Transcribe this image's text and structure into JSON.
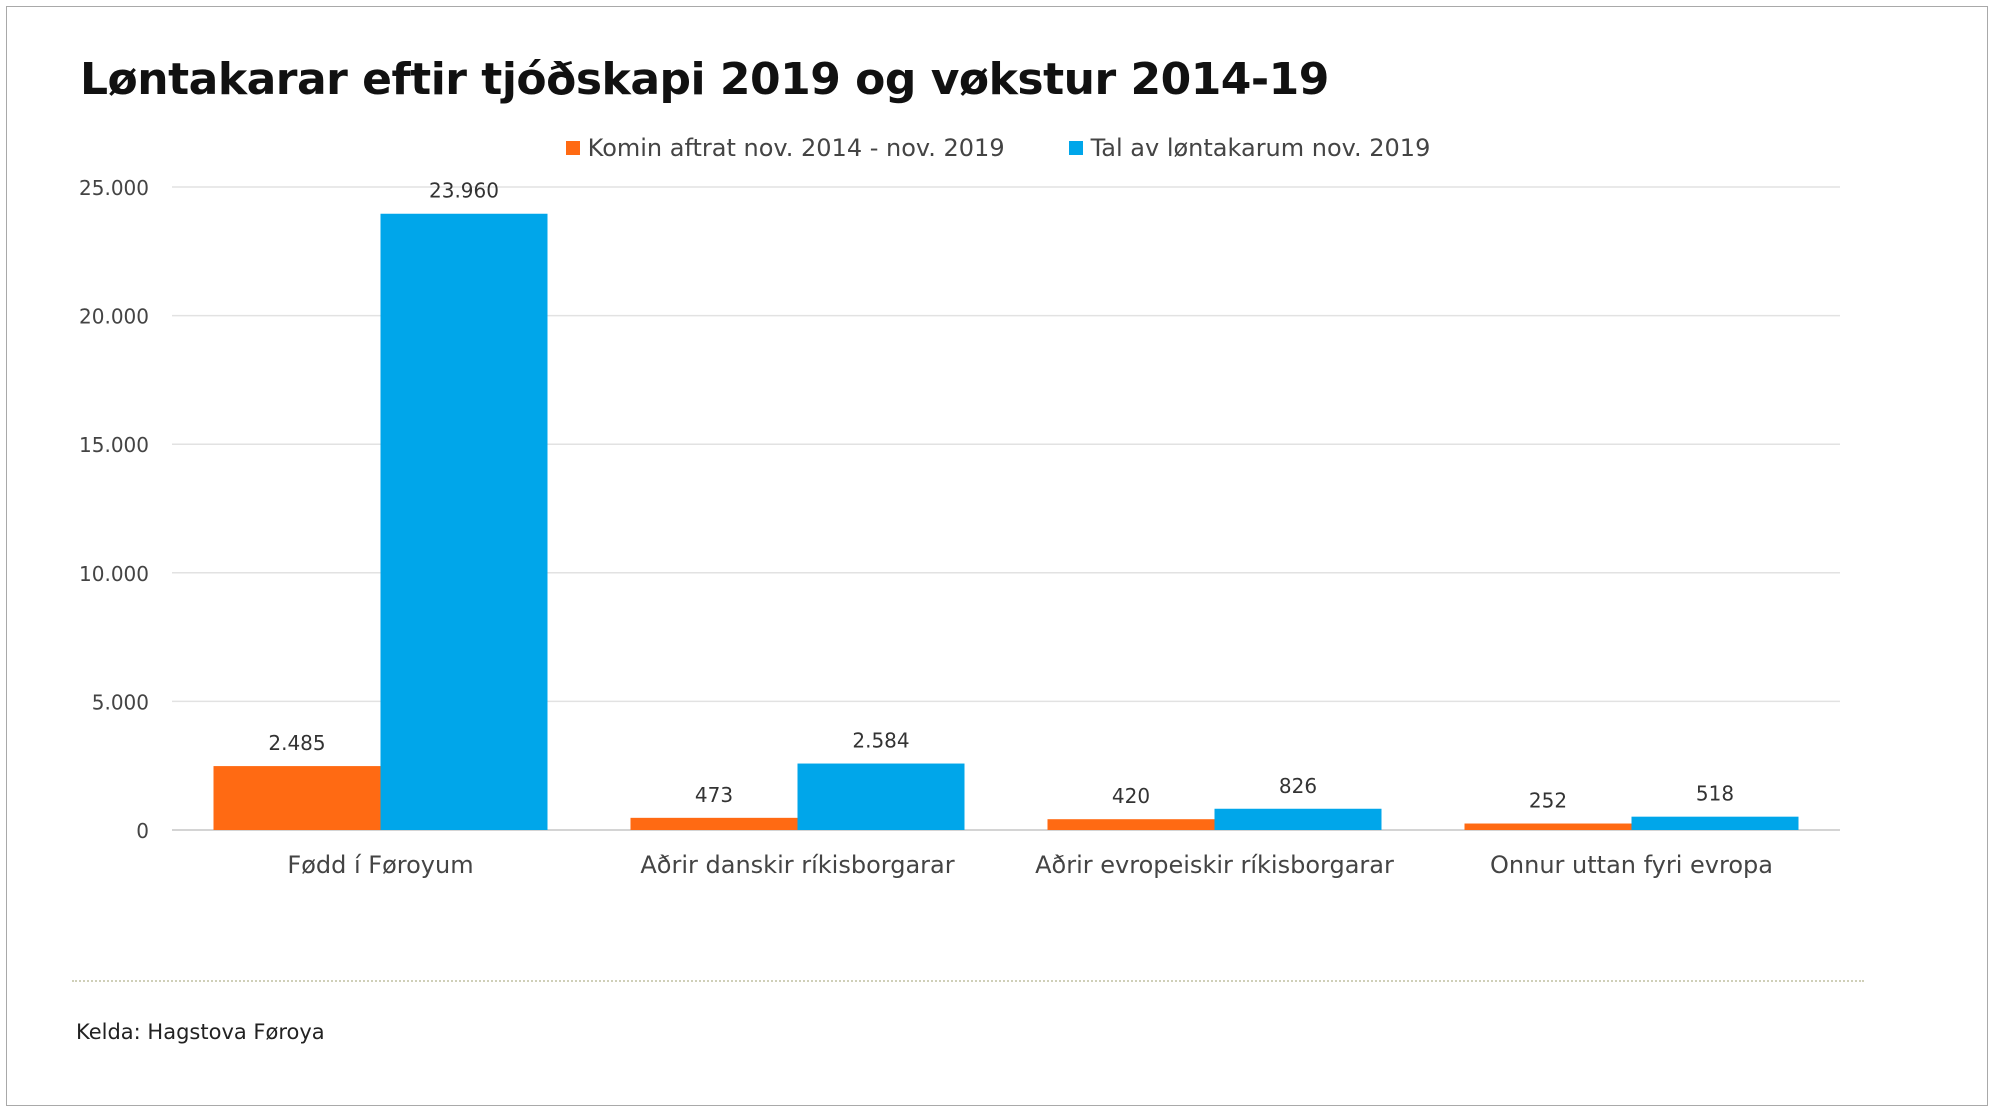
{
  "chart_data": {
    "type": "bar",
    "title": "Løntakarar eftir tjóðskapi 2019 og vøkstur 2014-19",
    "categories": [
      "Fødd í Føroyum",
      "Aðrir danskir ríkisborgarar",
      "Aðrir evropeiskir ríkisborgarar",
      "Onnur uttan fyri evropa"
    ],
    "series": [
      {
        "name": "Komin aftrat nov. 2014 - nov. 2019",
        "color": "#ff6a13",
        "values": [
          2485,
          473,
          420,
          252
        ],
        "labels": [
          "2.485",
          "473",
          "420",
          "252"
        ]
      },
      {
        "name": "Tal av løntakarum nov. 2019",
        "color": "#00a6ea",
        "values": [
          23960,
          2584,
          826,
          518
        ],
        "labels": [
          "23.960",
          "2.584",
          "826",
          "518"
        ]
      }
    ],
    "yticks": [
      0,
      5000,
      10000,
      15000,
      20000,
      25000
    ],
    "ytick_labels": [
      "0",
      "5.000",
      "10.000",
      "15.000",
      "20.000",
      "25.000"
    ],
    "ylim": [
      0,
      25000
    ],
    "xlabel": "",
    "ylabel": "",
    "grid": true,
    "legend_position": "top"
  },
  "footer": {
    "source": "Kelda: Hagstova Føroya"
  }
}
